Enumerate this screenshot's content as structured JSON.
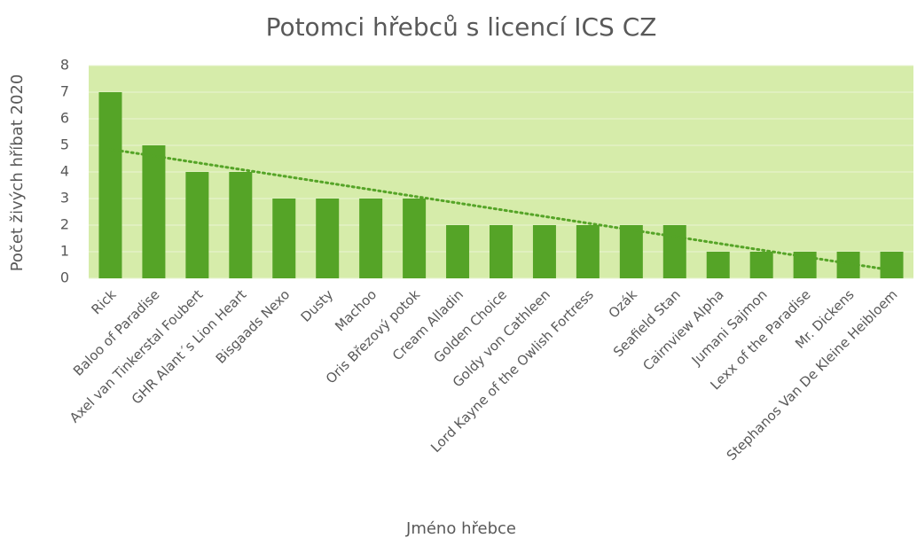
{
  "chart_data": {
    "type": "bar",
    "title": "Potomci hřebců s licencí ICS CZ",
    "x_label": "Jméno hřebce",
    "y_label": "Počet živých hříbat 2020",
    "categories": [
      "Rick",
      "Baloo of Paradise",
      "Axel van Tinkerstal Foubert",
      "GHR Alant´s Lion Heart",
      "Bisgaads Nexo",
      "Dusty",
      "Machoo",
      "Oris Březový potok",
      "Cream Alladin",
      "Golden Choice",
      "Goldy von Cathleen",
      "Lord Kayne of the Owlish Fortress",
      "Ozák",
      "Seafield Stan",
      "Cairnview Alpha",
      "Jumani Sajmon",
      "Lexx of the Paradise",
      "Mr. Dickens",
      "Stephanos Van De Kleine Heibloem"
    ],
    "values": [
      7,
      5,
      4,
      4,
      3,
      3,
      3,
      3,
      2,
      2,
      2,
      2,
      2,
      2,
      1,
      1,
      1,
      1,
      1
    ],
    "color": "#55a427",
    "plot_background": "#d6ecaa",
    "ylim": [
      0,
      8
    ],
    "yticks": [
      0,
      1,
      2,
      3,
      4,
      5,
      6,
      7,
      8
    ],
    "grid": true,
    "trendline": "linear"
  }
}
